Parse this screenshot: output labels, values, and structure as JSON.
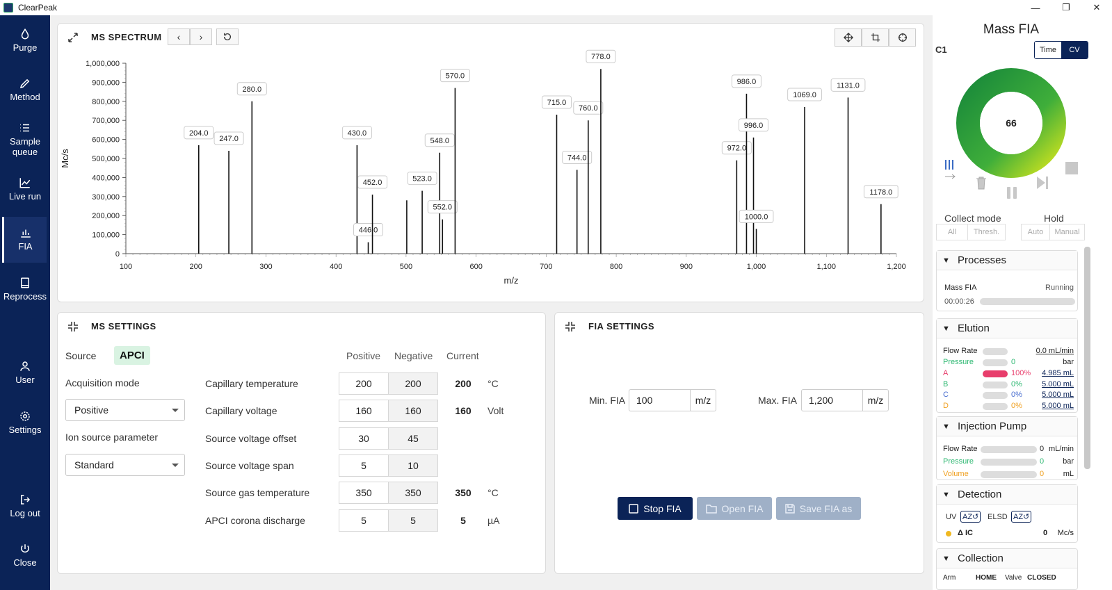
{
  "app": {
    "title": "ClearPeak",
    "window": {
      "min": "—",
      "max": "❐",
      "close": "✕"
    }
  },
  "sidebar": {
    "items": [
      {
        "label": "Purge",
        "icon": "drop-icon"
      },
      {
        "label": "Method",
        "icon": "pencil-icon"
      },
      {
        "label": "Sample\nqueue",
        "icon": "list-icon"
      },
      {
        "label": "Live run",
        "icon": "line-chart-icon"
      },
      {
        "label": "FIA",
        "icon": "bar-chart-icon",
        "active": true
      },
      {
        "label": "Reprocess",
        "icon": "book-icon"
      },
      {
        "label": "User",
        "icon": "user-icon"
      },
      {
        "label": "Settings",
        "icon": "gear-icon"
      },
      {
        "label": "Log out",
        "icon": "logout-icon"
      },
      {
        "label": "Close",
        "icon": "power-icon"
      }
    ]
  },
  "spectrum": {
    "title": "MS SPECTRUM",
    "prev": "‹",
    "next": "›"
  },
  "chart_data": {
    "type": "bar",
    "xlabel": "m/z",
    "ylabel": "Mc/s",
    "xlim": [
      100,
      1200
    ],
    "ylim": [
      0,
      1000000
    ],
    "xticks": [
      "100",
      "200",
      "300",
      "400",
      "500",
      "600",
      "700",
      "800",
      "900",
      "1,000",
      "1,100",
      "1,200"
    ],
    "yticks": [
      "0",
      "100,000",
      "200,000",
      "300,000",
      "400,000",
      "500,000",
      "600,000",
      "700,000",
      "800,000",
      "900,000",
      "1,000,000"
    ],
    "peaks": [
      {
        "x": 204,
        "y": 570000,
        "label": "204.0"
      },
      {
        "x": 247,
        "y": 540000,
        "label": "247.0"
      },
      {
        "x": 280,
        "y": 800000,
        "label": "280.0"
      },
      {
        "x": 430,
        "y": 570000,
        "label": "430.0"
      },
      {
        "x": 446,
        "y": 60000,
        "label": "446.0"
      },
      {
        "x": 452,
        "y": 310000,
        "label": "452.0"
      },
      {
        "x": 501,
        "y": 280000,
        "label": ""
      },
      {
        "x": 523,
        "y": 330000,
        "label": "523.0"
      },
      {
        "x": 548,
        "y": 530000,
        "label": "548.0"
      },
      {
        "x": 552,
        "y": 180000,
        "label": "552.0"
      },
      {
        "x": 570,
        "y": 870000,
        "label": "570.0"
      },
      {
        "x": 715,
        "y": 730000,
        "label": "715.0"
      },
      {
        "x": 744,
        "y": 440000,
        "label": "744.0"
      },
      {
        "x": 760,
        "y": 700000,
        "label": "760.0"
      },
      {
        "x": 778,
        "y": 970000,
        "label": "778.0"
      },
      {
        "x": 972,
        "y": 490000,
        "label": "972.0"
      },
      {
        "x": 986,
        "y": 840000,
        "label": "986.0"
      },
      {
        "x": 996,
        "y": 610000,
        "label": "996.0"
      },
      {
        "x": 1000,
        "y": 130000,
        "label": "1000.0"
      },
      {
        "x": 1069,
        "y": 770000,
        "label": "1069.0"
      },
      {
        "x": 1131,
        "y": 820000,
        "label": "1131.0"
      },
      {
        "x": 1178,
        "y": 260000,
        "label": "1178.0"
      }
    ]
  },
  "ms_settings": {
    "title": "MS SETTINGS",
    "source_label": "Source",
    "source_value": "APCI",
    "acq_label": "Acquisition mode",
    "acq_value": "Positive",
    "ion_label": "Ion source parameter",
    "ion_value": "Standard",
    "headers": {
      "positive": "Positive",
      "negative": "Negative",
      "current": "Current"
    },
    "rows": [
      {
        "label": "Capillary temperature",
        "pos": "200",
        "neg": "200",
        "cur": "200",
        "unit": "°C"
      },
      {
        "label": "Capillary voltage",
        "pos": "160",
        "neg": "160",
        "cur": "160",
        "unit": "Volt"
      },
      {
        "label": "Source voltage offset",
        "pos": "30",
        "neg": "45",
        "cur": "",
        "unit": ""
      },
      {
        "label": "Source voltage span",
        "pos": "5",
        "neg": "10",
        "cur": "",
        "unit": ""
      },
      {
        "label": "Source gas temperature",
        "pos": "350",
        "neg": "350",
        "cur": "350",
        "unit": "°C"
      },
      {
        "label": "APCI corona discharge",
        "pos": "5",
        "neg": "5",
        "cur": "5",
        "unit": "µA"
      }
    ]
  },
  "fia_settings": {
    "title": "FIA SETTINGS",
    "min_label": "Min. FIA",
    "min_value": "100",
    "min_unit": "m/z",
    "max_label": "Max. FIA",
    "max_value": "1,200",
    "max_unit": "m/z",
    "stop": "Stop FIA",
    "open": "Open FIA",
    "save": "Save FIA as"
  },
  "right": {
    "title": "Mass FIA",
    "channel": "C1",
    "toggle": [
      "Time",
      "CV"
    ],
    "gauge_value": "66",
    "collect_mode": "Collect mode",
    "collect_opts": [
      "All",
      "Thresh."
    ],
    "hold": "Hold",
    "hold_opts": [
      "Auto",
      "Manual"
    ],
    "processes": {
      "title": "Processes",
      "name": "Mass FIA",
      "status": "Running",
      "time": "00:00:26"
    },
    "elution": {
      "title": "Elution",
      "flow_label": "Flow Rate",
      "flow_value": "0.0 mL/min",
      "pressure_label": "Pressure",
      "pressure_value": "0",
      "pressure_unit": "bar",
      "channels": [
        {
          "name": "A",
          "pct": "100%",
          "vol": "4.985 mL",
          "color": "#e83e6c",
          "fill": 1.0
        },
        {
          "name": "B",
          "pct": "0%",
          "vol": "5.000 mL",
          "color": "#2eb872",
          "fill": 0
        },
        {
          "name": "C",
          "pct": "0%",
          "vol": "5.000 mL",
          "color": "#4a6fd0",
          "fill": 0
        },
        {
          "name": "D",
          "pct": "0%",
          "vol": "5.000 mL",
          "color": "#f0a020",
          "fill": 0
        }
      ]
    },
    "injection": {
      "title": "Injection Pump",
      "rows": [
        {
          "label": "Flow Rate",
          "value": "0",
          "unit": "mL/min",
          "color": "#222"
        },
        {
          "label": "Pressure",
          "value": "0",
          "unit": "bar",
          "color": "#2eb872"
        },
        {
          "label": "Volume",
          "value": "0",
          "unit": "mL",
          "color": "#f0a020"
        }
      ]
    },
    "detection": {
      "title": "Detection",
      "uv": "UV",
      "uv_btn": "AZ↺",
      "elsd": "ELSD",
      "elsd_btn": "AZ↺",
      "ic_label": "Δ IC",
      "ic_value": "0",
      "ic_unit": "Mc/s"
    },
    "collection": {
      "title": "Collection",
      "arm": "Arm",
      "arm_val": "HOME",
      "valve": "Valve",
      "valve_val": "CLOSED"
    }
  }
}
